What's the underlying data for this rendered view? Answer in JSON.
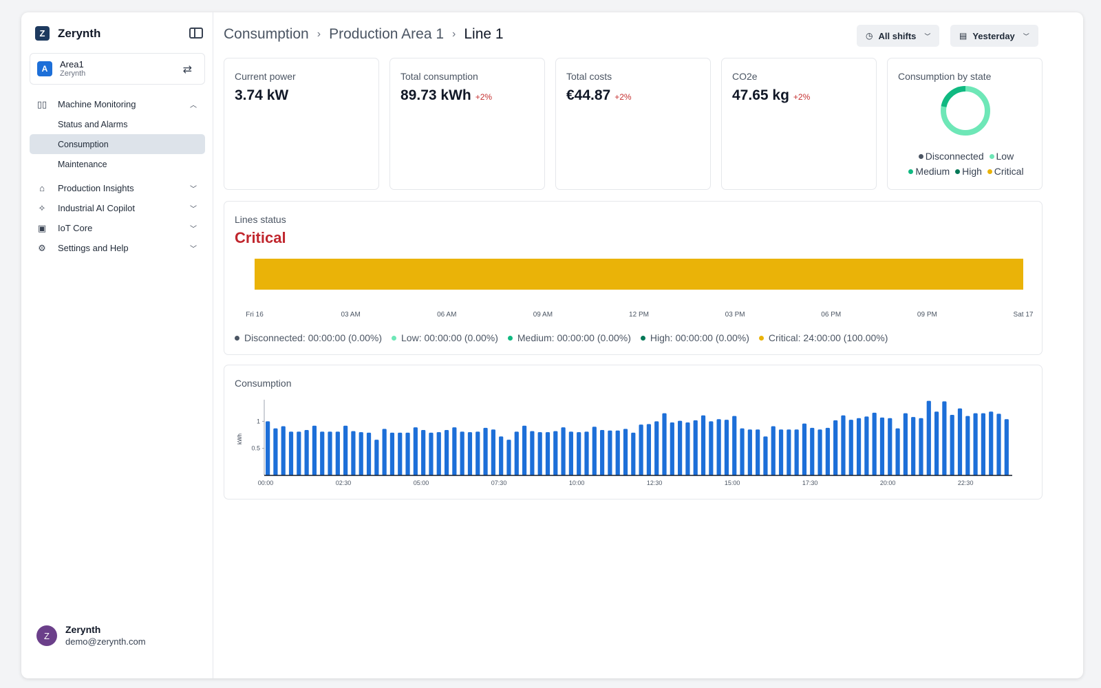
{
  "brand": {
    "name": "Zerynth",
    "logo_letter": "Z"
  },
  "area": {
    "avatar": "A",
    "name": "Area1",
    "org": "Zerynth"
  },
  "nav": {
    "machine_monitoring": "Machine Monitoring",
    "status_alarms": "Status and Alarms",
    "consumption": "Consumption",
    "maintenance": "Maintenance",
    "production_insights": "Production Insights",
    "ai_copilot": "Industrial AI Copilot",
    "iot_core": "IoT Core",
    "settings_help": "Settings and Help"
  },
  "user": {
    "avatar": "Z",
    "name": "Zerynth",
    "email": "demo@zerynth.com"
  },
  "breadcrumb": {
    "level1": "Consumption",
    "level2": "Production Area 1",
    "current": "Line 1"
  },
  "filters": {
    "shifts": "All shifts",
    "date": "Yesterday"
  },
  "kpis": {
    "current_power": {
      "label": "Current power",
      "value": "3.74 kW"
    },
    "total_consumption": {
      "label": "Total consumption",
      "value": "89.73 kWh",
      "delta": "+2%"
    },
    "total_costs": {
      "label": "Total costs",
      "value": "€44.87",
      "delta": "+2%"
    },
    "co2e": {
      "label": "CO2e",
      "value": "47.65 kg",
      "delta": "+2%"
    }
  },
  "consumption_by_state": {
    "label": "Consumption by state",
    "legend": {
      "disconnected": "Disconnected",
      "low": "Low",
      "medium": "Medium",
      "high": "High",
      "critical": "Critical"
    }
  },
  "colors": {
    "disconnected": "#4b5563",
    "low": "#6ee7b7",
    "medium": "#10b981",
    "high": "#047857",
    "critical": "#eab308",
    "bar": "#1d6fd8",
    "status_critical_text": "#c0262d"
  },
  "lines_status": {
    "title": "Lines status",
    "value": "Critical",
    "critical_share": 1.0,
    "ticks": [
      "Fri 16",
      "03 AM",
      "06 AM",
      "09 AM",
      "12 PM",
      "03 PM",
      "06 PM",
      "09 PM",
      "Sat 17"
    ],
    "legend": {
      "disconnected": "Disconnected: 00:00:00 (0.00%)",
      "low": "Low: 00:00:00 (0.00%)",
      "medium": "Medium: 00:00:00 (0.00%)",
      "high": "High: 00:00:00 (0.00%)",
      "critical": "Critical: 24:00:00 (100.00%)"
    }
  },
  "consumption_chart": {
    "title": "Consumption"
  },
  "chart_data": {
    "type": "bar",
    "title": "Consumption",
    "xlabel": "",
    "ylabel": "kWh",
    "ylim": [
      0,
      1.4
    ],
    "yticks": [
      0.5,
      1
    ],
    "x_ticks": [
      "00:00",
      "02:30",
      "05:00",
      "07:30",
      "10:00",
      "12:30",
      "15:00",
      "17:30",
      "20:00",
      "22:30"
    ],
    "interval_minutes": 15,
    "values": [
      1.0,
      0.87,
      0.91,
      0.81,
      0.81,
      0.84,
      0.92,
      0.81,
      0.81,
      0.81,
      0.92,
      0.82,
      0.8,
      0.79,
      0.66,
      0.86,
      0.79,
      0.79,
      0.79,
      0.89,
      0.84,
      0.79,
      0.8,
      0.84,
      0.89,
      0.81,
      0.8,
      0.81,
      0.88,
      0.85,
      0.72,
      0.66,
      0.81,
      0.92,
      0.82,
      0.8,
      0.8,
      0.82,
      0.89,
      0.81,
      0.8,
      0.81,
      0.9,
      0.84,
      0.83,
      0.83,
      0.86,
      0.79,
      0.94,
      0.95,
      1.0,
      1.15,
      0.98,
      1.01,
      0.98,
      1.02,
      1.11,
      1.0,
      1.04,
      1.03,
      1.1,
      0.87,
      0.85,
      0.85,
      0.72,
      0.91,
      0.85,
      0.85,
      0.85,
      0.96,
      0.88,
      0.85,
      0.88,
      1.02,
      1.11,
      1.03,
      1.06,
      1.09,
      1.16,
      1.07,
      1.06,
      0.87,
      1.15,
      1.08,
      1.06,
      1.38,
      1.18,
      1.37,
      1.12,
      1.24,
      1.1,
      1.15,
      1.15,
      1.18,
      1.14,
      1.04
    ]
  }
}
